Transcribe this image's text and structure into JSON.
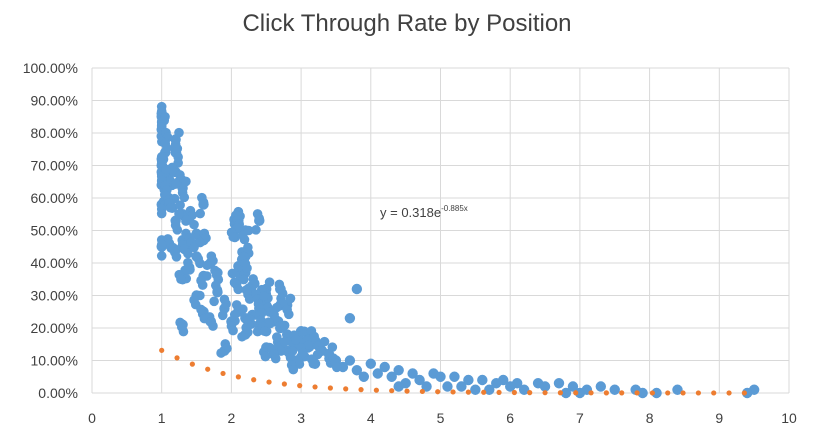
{
  "chart_data": {
    "type": "scatter",
    "title": "Click Through Rate by Position",
    "xlabel": "",
    "ylabel": "",
    "xlim": [
      0,
      10
    ],
    "ylim": [
      0,
      1
    ],
    "x_ticks": [
      "0",
      "1",
      "2",
      "3",
      "4",
      "5",
      "6",
      "7",
      "8",
      "9",
      "10"
    ],
    "y_ticks": [
      "0.00%",
      "10.00%",
      "20.00%",
      "30.00%",
      "40.00%",
      "50.00%",
      "60.00%",
      "70.00%",
      "80.00%",
      "90.00%",
      "100.00%"
    ],
    "grid": true,
    "legend": "none",
    "colors": {
      "points": "#5b9bd5",
      "trendline": "#ed7d31",
      "grid": "#d9d9d9",
      "text": "#404040"
    },
    "series": [
      {
        "points": [
          [
            1.0,
            0.86
          ],
          [
            1.0,
            0.85
          ],
          [
            1.0,
            0.81
          ],
          [
            1.0,
            0.79
          ],
          [
            1.05,
            0.78
          ],
          [
            1.2,
            0.78
          ],
          [
            1.2,
            0.74
          ],
          [
            1.05,
            0.74
          ],
          [
            1.0,
            0.72
          ],
          [
            1.0,
            0.7
          ],
          [
            1.0,
            0.68
          ],
          [
            1.2,
            0.68
          ],
          [
            1.1,
            0.66
          ],
          [
            1.25,
            0.65
          ],
          [
            1.3,
            0.63
          ],
          [
            1.0,
            0.64
          ],
          [
            1.05,
            0.61
          ],
          [
            1.1,
            0.6
          ],
          [
            1.6,
            0.58
          ],
          [
            1.0,
            0.58
          ],
          [
            1.15,
            0.57
          ],
          [
            1.3,
            0.55
          ],
          [
            1.4,
            0.54
          ],
          [
            1.2,
            0.53
          ],
          [
            2.05,
            0.52
          ],
          [
            2.1,
            0.53
          ],
          [
            2.1,
            0.54
          ],
          [
            2.4,
            0.53
          ],
          [
            2.2,
            0.5
          ],
          [
            2.05,
            0.48
          ],
          [
            1.5,
            0.49
          ],
          [
            1.6,
            0.47
          ],
          [
            1.3,
            0.47
          ],
          [
            1.1,
            0.46
          ],
          [
            1.4,
            0.45
          ],
          [
            1.2,
            0.44
          ],
          [
            1.0,
            0.45
          ],
          [
            2.2,
            0.43
          ],
          [
            2.2,
            0.42
          ],
          [
            1.5,
            0.42
          ],
          [
            1.7,
            0.4
          ],
          [
            2.1,
            0.39
          ],
          [
            2.15,
            0.38
          ],
          [
            2.2,
            0.37
          ],
          [
            1.8,
            0.37
          ],
          [
            1.4,
            0.38
          ],
          [
            1.6,
            0.36
          ],
          [
            1.3,
            0.35
          ],
          [
            2.05,
            0.34
          ],
          [
            2.3,
            0.33
          ],
          [
            2.5,
            0.32
          ],
          [
            2.7,
            0.32
          ],
          [
            3.8,
            0.32
          ],
          [
            2.25,
            0.31
          ],
          [
            1.8,
            0.31
          ],
          [
            1.5,
            0.3
          ],
          [
            2.4,
            0.29
          ],
          [
            2.5,
            0.27
          ],
          [
            2.7,
            0.27
          ],
          [
            2.8,
            0.27
          ],
          [
            2.4,
            0.26
          ],
          [
            1.9,
            0.26
          ],
          [
            1.6,
            0.25
          ],
          [
            2.1,
            0.25
          ],
          [
            2.3,
            0.24
          ],
          [
            3.7,
            0.23
          ],
          [
            2.2,
            0.23
          ],
          [
            2.6,
            0.22
          ],
          [
            2.0,
            0.22
          ],
          [
            1.7,
            0.22
          ],
          [
            2.4,
            0.21
          ],
          [
            1.3,
            0.21
          ],
          [
            2.7,
            0.2
          ],
          [
            3.0,
            0.19
          ],
          [
            2.5,
            0.19
          ],
          [
            2.8,
            0.18
          ],
          [
            2.2,
            0.18
          ],
          [
            3.1,
            0.17
          ],
          [
            3.2,
            0.16
          ],
          [
            2.9,
            0.15
          ],
          [
            2.7,
            0.15
          ],
          [
            3.1,
            0.14
          ],
          [
            2.5,
            0.14
          ],
          [
            3.3,
            0.13
          ],
          [
            2.8,
            0.13
          ],
          [
            1.9,
            0.13
          ],
          [
            3.4,
            0.12
          ],
          [
            2.6,
            0.12
          ],
          [
            3.0,
            0.11
          ],
          [
            3.5,
            0.1
          ],
          [
            3.7,
            0.1
          ],
          [
            2.9,
            0.1
          ],
          [
            3.2,
            0.09
          ],
          [
            4.0,
            0.09
          ],
          [
            3.6,
            0.08
          ],
          [
            4.2,
            0.08
          ],
          [
            3.8,
            0.07
          ],
          [
            4.4,
            0.07
          ],
          [
            4.1,
            0.06
          ],
          [
            4.6,
            0.06
          ],
          [
            4.9,
            0.06
          ],
          [
            3.9,
            0.05
          ],
          [
            4.3,
            0.05
          ],
          [
            5.0,
            0.05
          ],
          [
            5.2,
            0.05
          ],
          [
            4.7,
            0.04
          ],
          [
            5.4,
            0.04
          ],
          [
            5.6,
            0.04
          ],
          [
            5.9,
            0.04
          ],
          [
            6.1,
            0.03
          ],
          [
            6.4,
            0.03
          ],
          [
            5.8,
            0.03
          ],
          [
            6.7,
            0.03
          ],
          [
            4.5,
            0.03
          ],
          [
            5.1,
            0.02
          ],
          [
            6.0,
            0.02
          ],
          [
            6.5,
            0.02
          ],
          [
            6.9,
            0.02
          ],
          [
            7.3,
            0.02
          ],
          [
            7.1,
            0.01
          ],
          [
            7.5,
            0.01
          ],
          [
            7.8,
            0.01
          ],
          [
            6.2,
            0.01
          ],
          [
            8.4,
            0.01
          ],
          [
            9.5,
            0.01
          ],
          [
            7.9,
            0.0
          ],
          [
            7.0,
            0.0
          ],
          [
            8.1,
            0.0
          ],
          [
            9.4,
            0.0
          ],
          [
            6.8,
            0.0
          ],
          [
            5.5,
            0.01
          ],
          [
            5.3,
            0.02
          ],
          [
            5.7,
            0.01
          ],
          [
            4.8,
            0.02
          ],
          [
            4.4,
            0.02
          ]
        ]
      }
    ],
    "trendline": {
      "type": "exponential",
      "a": 0.318,
      "b": -0.885,
      "label_text": "y = 0.318e",
      "label_exponent": "-0.885x"
    }
  }
}
